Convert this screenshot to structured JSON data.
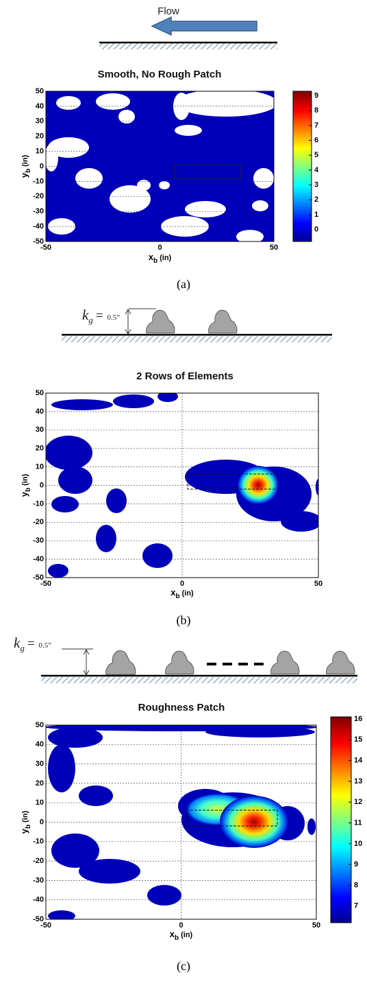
{
  "panels": [
    {
      "diagram": {
        "flow_label": "Flow"
      },
      "title": "Smooth, No Rough Patch",
      "xlabel": {
        "symbol": "x",
        "subscript": "b",
        "unit": "(in)"
      },
      "ylabel": {
        "symbol": "y",
        "subscript": "b",
        "unit": "(in)"
      },
      "xlim": [
        -50,
        50
      ],
      "ylim": [
        -50,
        50
      ],
      "xticks": [
        -50,
        0,
        50
      ],
      "yticks": [
        -50,
        -40,
        -30,
        -20,
        -10,
        0,
        10,
        20,
        30,
        40,
        50
      ],
      "grid": true,
      "colorbar": {
        "lim": [
          -0.8,
          9.3
        ],
        "ticks": [
          0,
          1,
          2,
          3,
          4,
          5,
          6,
          7,
          8,
          9
        ]
      },
      "caption": "(a)"
    },
    {
      "diagram": {
        "k_symbol": "k",
        "k_subscript": "g",
        "equals": "=",
        "height": "0.5”"
      },
      "title": "2 Rows of Elements",
      "xlabel": {
        "symbol": "x",
        "subscript": "b",
        "unit": "(in)"
      },
      "ylabel": {
        "symbol": "y",
        "subscript": "b",
        "unit": "(in)"
      },
      "xlim": [
        -50,
        50
      ],
      "ylim": [
        -50,
        50
      ],
      "xticks": [
        -50,
        0,
        50
      ],
      "yticks": [
        -50,
        -40,
        -30,
        -20,
        -10,
        0,
        10,
        20,
        30,
        40,
        50
      ],
      "grid": true,
      "caption": "(b)"
    },
    {
      "diagram": {
        "k_symbol": "k",
        "k_subscript": "g",
        "equals": "=",
        "height": "0.5”"
      },
      "title": "Roughness Patch",
      "xlabel": {
        "symbol": "x",
        "subscript": "b",
        "unit": "(in)"
      },
      "ylabel": {
        "symbol": "y",
        "subscript": "b",
        "unit": "(in)"
      },
      "xlim": [
        -50,
        50
      ],
      "ylim": [
        -50,
        50
      ],
      "xticks": [
        -50,
        0,
        50
      ],
      "yticks": [
        -50,
        -40,
        -30,
        -20,
        -10,
        0,
        10,
        20,
        30,
        40,
        50
      ],
      "grid": true,
      "colorbar": {
        "lim": [
          6.2,
          16.1
        ],
        "ticks": [
          7,
          8,
          9,
          10,
          11,
          12,
          13,
          14,
          15,
          16
        ]
      },
      "caption": "(c)"
    }
  ]
}
